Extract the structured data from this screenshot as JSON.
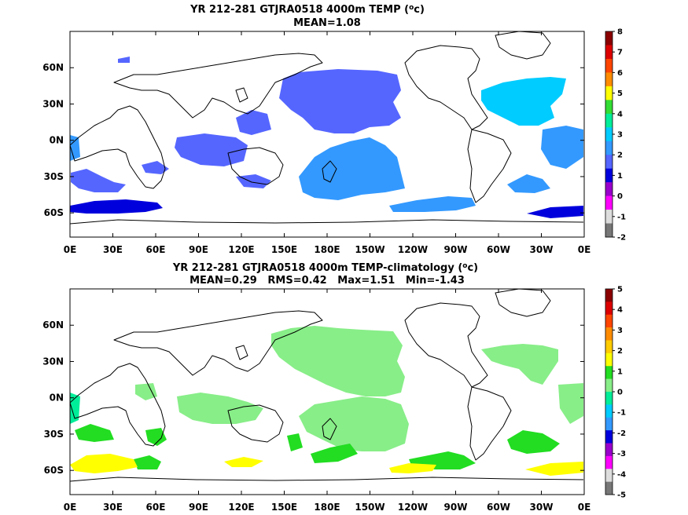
{
  "chart_data": [
    {
      "type": "heatmap",
      "title_line1": "YR 212-281 GTJRA0518 4000m TEMP (",
      "title_sup": "o",
      "title_unit": "c)",
      "title_line2": "MEAN=1.08",
      "x_ticks": [
        "0E",
        "30E",
        "60E",
        "90E",
        "120E",
        "150E",
        "180E",
        "150W",
        "120W",
        "90W",
        "60W",
        "30W",
        "0E"
      ],
      "y_ticks": [
        "60N",
        "30N",
        "0N",
        "30S",
        "60S"
      ],
      "y_tick_lat": [
        60,
        30,
        0,
        -30,
        -60
      ],
      "lat_range": [
        -80,
        90
      ],
      "lon_range": [
        0,
        360
      ],
      "colorbar_labels": [
        "8",
        "7",
        "6",
        "5",
        "4",
        "3",
        "2",
        "1",
        "0",
        "-1",
        "-2"
      ],
      "colorbar_colors": [
        "#8b0000",
        "#dd0000",
        "#ff4500",
        "#ff8c00",
        "#ffff00",
        "#33dd33",
        "#00ee99",
        "#00ccff",
        "#3399ff",
        "#5566ff",
        "#0000dd",
        "#9900cc",
        "#ff00ff",
        "#dddddd",
        "#777777"
      ],
      "regions": [
        {
          "name": "central-north-pacific",
          "color": "#5566ff"
        },
        {
          "name": "south-pacific",
          "color": "#3399ff"
        },
        {
          "name": "north-atlantic",
          "color": "#00ccff"
        },
        {
          "name": "indian-ocean",
          "color": "#5566ff"
        },
        {
          "name": "southern-ocean-atlantic",
          "color": "#0000dd"
        },
        {
          "name": "southern-ocean-indian",
          "color": "#0000dd"
        }
      ]
    },
    {
      "type": "heatmap",
      "title_line1": "YR 212-281 GTJRA0518 4000m TEMP-climatology (",
      "title_sup": "o",
      "title_unit": "c)",
      "title_line2": "MEAN=0.29   RMS=0.42   Max=1.51   Min=-1.43",
      "x_ticks": [
        "0E",
        "30E",
        "60E",
        "90E",
        "120E",
        "150E",
        "180E",
        "150W",
        "120W",
        "90W",
        "60W",
        "30W",
        "0E"
      ],
      "y_ticks": [
        "60N",
        "30N",
        "0N",
        "30S",
        "60S"
      ],
      "y_tick_lat": [
        60,
        30,
        0,
        -30,
        -60
      ],
      "lat_range": [
        -80,
        90
      ],
      "lon_range": [
        0,
        360
      ],
      "colorbar_labels": [
        "5",
        "4",
        "3",
        "2",
        "1",
        "0",
        "-1",
        "-2",
        "-3",
        "-4",
        "-5"
      ],
      "colorbar_colors": [
        "#8b0000",
        "#dd0000",
        "#ff4500",
        "#ff8c00",
        "#ffcc00",
        "#ffff00",
        "#22dd22",
        "#88ee88",
        "#00ee99",
        "#00ccff",
        "#3399ff",
        "#0000dd",
        "#9900cc",
        "#ff00ff",
        "#dddddd",
        "#777777"
      ],
      "regions": [
        {
          "name": "central-north-pacific",
          "color": "#88ee88"
        },
        {
          "name": "south-pacific",
          "color": "#88ee88"
        },
        {
          "name": "north-atlantic",
          "color": "#88ee88"
        },
        {
          "name": "indian-ocean",
          "color": "#88ee88"
        },
        {
          "name": "southern-ocean-atlantic",
          "color": "#ffff00"
        },
        {
          "name": "southern-ocean-pacific",
          "color": "#22dd22"
        }
      ]
    }
  ]
}
